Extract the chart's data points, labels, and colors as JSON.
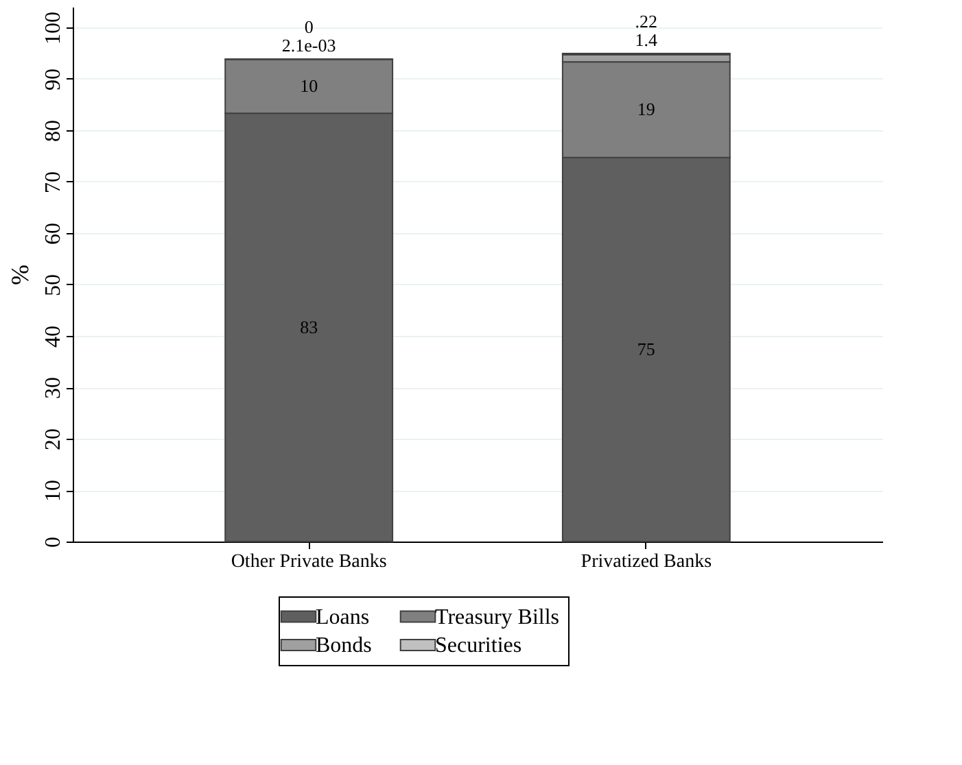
{
  "chart_data": {
    "type": "bar",
    "stacked": true,
    "ylabel": "%",
    "categories": [
      "Other Private Banks",
      "Privatized Banks"
    ],
    "series": [
      {
        "name": "Loans",
        "color": "#5f5f5f",
        "values": [
          83.3,
          74.7
        ],
        "value_labels": [
          "83",
          "75"
        ]
      },
      {
        "name": "Treasury Bills",
        "color": "#808080",
        "values": [
          10.5,
          18.6
        ],
        "value_labels": [
          "10",
          "19"
        ]
      },
      {
        "name": "Bonds",
        "color": "#a0a0a0",
        "values": [
          0.0021,
          1.4
        ],
        "value_labels": [
          "2.1e-03",
          "1.4"
        ]
      },
      {
        "name": "Securities",
        "color": "#c0c0c0",
        "values": [
          0,
          0.22
        ],
        "value_labels": [
          "0",
          ".22"
        ]
      }
    ],
    "ylim": [
      0,
      104
    ],
    "yticks": [
      0,
      10,
      20,
      30,
      40,
      50,
      60,
      70,
      80,
      90,
      100
    ],
    "grid": "y",
    "legend": "bottom"
  }
}
